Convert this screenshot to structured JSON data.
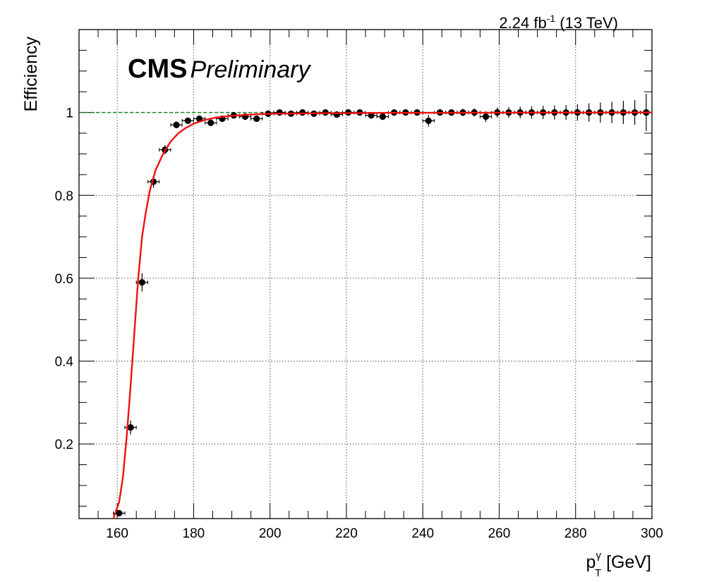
{
  "chart_data": {
    "type": "scatter",
    "title": "",
    "lumi_label": {
      "value": "2.24 fb",
      "sup": "-1",
      "suffix": " (13 TeV)"
    },
    "experiment_label": {
      "bold": "CMS",
      "italic": "Preliminary"
    },
    "xlabel": {
      "base": "p",
      "sup": "γ",
      "sub": "T",
      "unit": " [GeV]"
    },
    "ylabel": "Efficiency",
    "xlim": [
      150,
      300
    ],
    "ylim": [
      0.02,
      1.2
    ],
    "x_ticks": [
      160,
      180,
      200,
      220,
      240,
      260,
      280,
      300
    ],
    "y_ticks": [
      0.2,
      0.4,
      0.6,
      0.8,
      1
    ],
    "y_tick_labels": [
      "0.2",
      "0.4",
      "0.6",
      "0.8",
      "1"
    ],
    "grid": true,
    "reference_line": {
      "y": 1.0,
      "color": "#1a8a1a",
      "style": "dashed"
    },
    "fit_curve": {
      "color": "#ee1111",
      "points": [
        [
          157.5,
          0.0
        ],
        [
          159.0,
          0.02
        ],
        [
          160.5,
          0.06
        ],
        [
          161.5,
          0.12
        ],
        [
          162.5,
          0.22
        ],
        [
          163.5,
          0.34
        ],
        [
          164.5,
          0.47
        ],
        [
          165.5,
          0.6
        ],
        [
          166.5,
          0.7
        ],
        [
          167.5,
          0.76
        ],
        [
          168.5,
          0.81
        ],
        [
          170.0,
          0.86
        ],
        [
          172.0,
          0.9
        ],
        [
          174.0,
          0.93
        ],
        [
          176.0,
          0.95
        ],
        [
          178.0,
          0.963
        ],
        [
          180.0,
          0.973
        ],
        [
          183.0,
          0.982
        ],
        [
          186.0,
          0.988
        ],
        [
          190.0,
          0.992
        ],
        [
          195.0,
          0.995
        ],
        [
          200.0,
          0.997
        ],
        [
          210.0,
          0.998
        ],
        [
          230.0,
          0.999
        ],
        [
          260.0,
          0.9995
        ],
        [
          300.0,
          1.0
        ]
      ]
    },
    "points": {
      "x": [
        160.5,
        163.5,
        166.5,
        169.5,
        172.5,
        175.5,
        178.5,
        181.5,
        184.5,
        187.5,
        190.5,
        193.5,
        196.5,
        199.5,
        202.5,
        205.5,
        208.5,
        211.5,
        214.5,
        217.5,
        220.5,
        223.5,
        226.5,
        229.5,
        232.5,
        235.5,
        238.5,
        241.5,
        244.5,
        247.5,
        250.5,
        253.5,
        256.5,
        259.5,
        262.5,
        265.5,
        268.5,
        271.5,
        274.5,
        277.5,
        280.5,
        283.5,
        286.5,
        289.5,
        292.5,
        295.5,
        298.5
      ],
      "y": [
        0.033,
        0.24,
        0.59,
        0.833,
        0.91,
        0.97,
        0.98,
        0.985,
        0.975,
        0.985,
        0.993,
        0.99,
        0.985,
        0.997,
        1.0,
        0.997,
        1.0,
        0.997,
        1.0,
        0.995,
        1.0,
        1.0,
        0.993,
        0.99,
        1.0,
        1.0,
        1.0,
        0.98,
        1.0,
        1.0,
        1.0,
        1.0,
        0.99,
        1.0,
        1.0,
        1.0,
        1.0,
        1.0,
        1.0,
        1.0,
        1.0,
        1.0,
        1.0,
        1.0,
        1.0,
        1.0,
        1.0
      ],
      "y_err": [
        0.006,
        0.017,
        0.022,
        0.015,
        0.011,
        0.008,
        0.007,
        0.006,
        0.008,
        0.006,
        0.005,
        0.006,
        0.007,
        0.004,
        0.003,
        0.004,
        0.003,
        0.005,
        0.004,
        0.006,
        0.004,
        0.005,
        0.008,
        0.008,
        0.005,
        0.005,
        0.006,
        0.014,
        0.007,
        0.008,
        0.009,
        0.01,
        0.013,
        0.012,
        0.013,
        0.014,
        0.015,
        0.016,
        0.017,
        0.018,
        0.02,
        0.022,
        0.024,
        0.026,
        0.028,
        0.03,
        0.045
      ],
      "x_err": 1.5
    }
  }
}
